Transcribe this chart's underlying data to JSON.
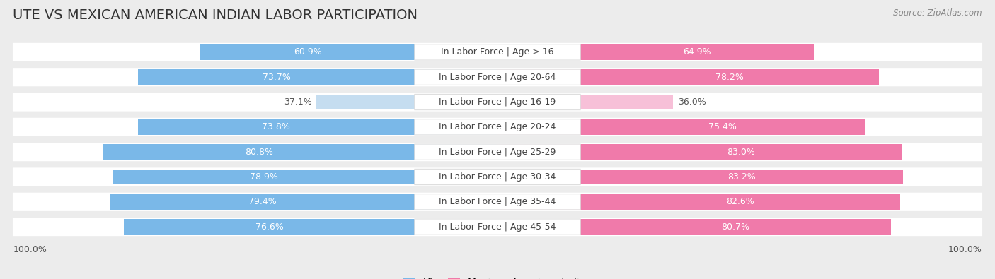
{
  "title": "UTE VS MEXICAN AMERICAN INDIAN LABOR PARTICIPATION",
  "source": "Source: ZipAtlas.com",
  "categories": [
    "In Labor Force | Age > 16",
    "In Labor Force | Age 20-64",
    "In Labor Force | Age 16-19",
    "In Labor Force | Age 20-24",
    "In Labor Force | Age 25-29",
    "In Labor Force | Age 30-34",
    "In Labor Force | Age 35-44",
    "In Labor Force | Age 45-54"
  ],
  "ute_values": [
    60.9,
    73.7,
    37.1,
    73.8,
    80.8,
    78.9,
    79.4,
    76.6
  ],
  "mexican_values": [
    64.9,
    78.2,
    36.0,
    75.4,
    83.0,
    83.2,
    82.6,
    80.7
  ],
  "ute_color": "#7ab8e8",
  "ute_color_light": "#c5ddf0",
  "mexican_color": "#f07aaa",
  "mexican_color_light": "#f7c0d8",
  "background_color": "#ececec",
  "title_fontsize": 14,
  "label_fontsize": 9,
  "value_fontsize": 9,
  "legend_fontsize": 10,
  "axis_label_fontsize": 9,
  "left_axis_label": "100.0%",
  "right_axis_label": "100.0%"
}
